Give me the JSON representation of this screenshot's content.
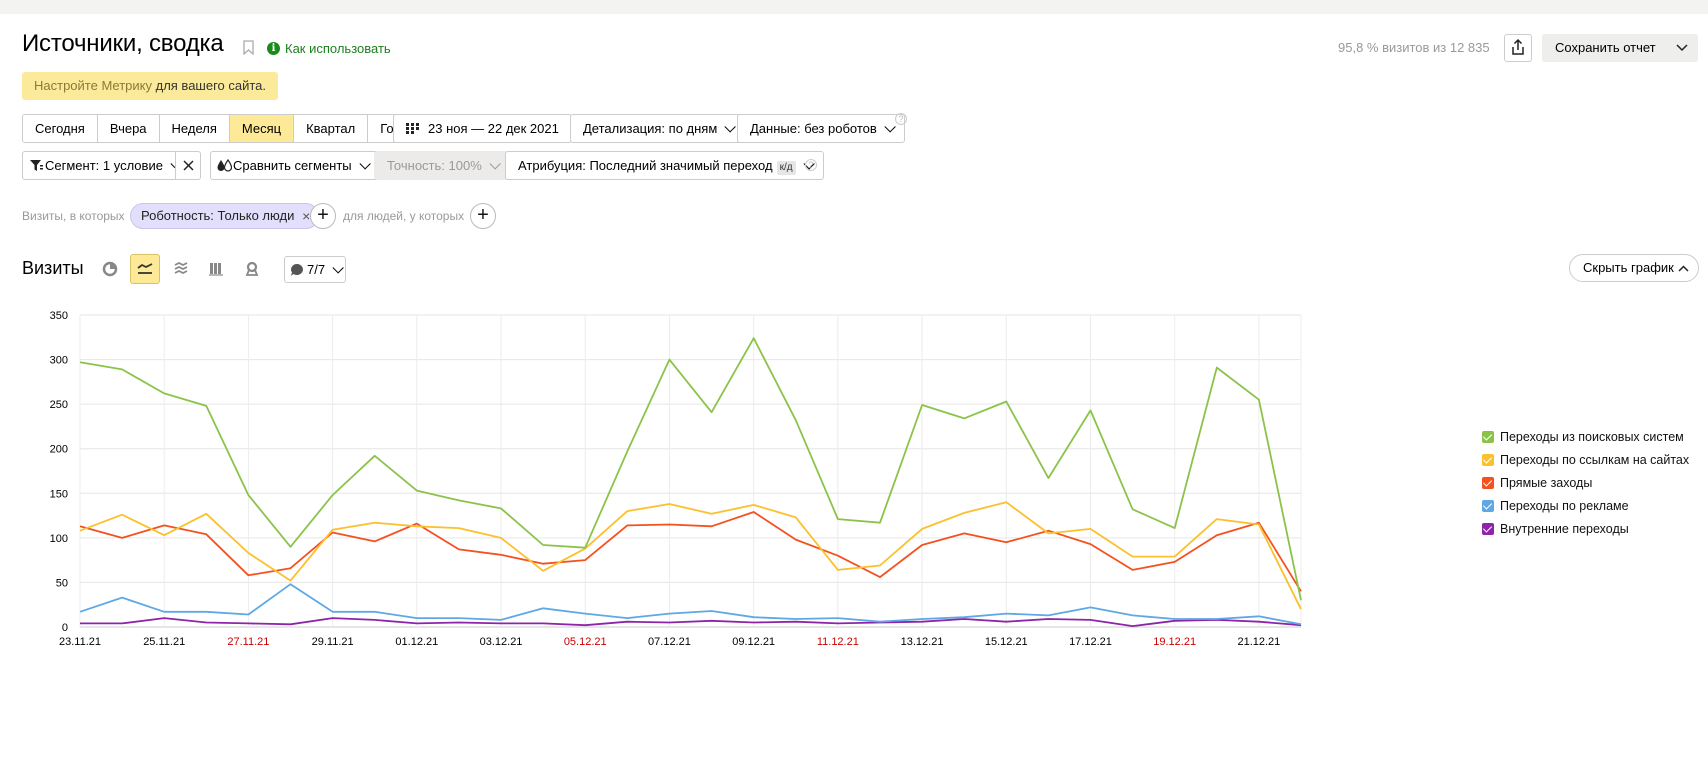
{
  "header": {
    "title": "Источники, сводка",
    "how_to": "Как использовать",
    "visits_share": "95,8 % визитов из 12 835",
    "save_label": "Сохранить отчет"
  },
  "notice": {
    "link_text": "Настройте Метрику",
    "rest_text": " для вашего сайта."
  },
  "periods": [
    "Сегодня",
    "Вчера",
    "Неделя",
    "Месяц",
    "Квартал",
    "Год"
  ],
  "active_period": "Месяц",
  "date_range": "23 ноя — 22 дек 2021",
  "detail": "Детализация: по дням",
  "data_filter": "Данные: без роботов",
  "segment": "Сегмент: 1 условие",
  "compare": "Сравнить сегменты",
  "accuracy": "Точность: 100%",
  "attribution": "Атрибуция: Последний значимый переход",
  "attribution_tag": "к/д",
  "filters": {
    "visits_label": "Визиты, в которых",
    "chip": "Роботность: Только люди",
    "people_label": "для людей, у которых"
  },
  "chart_section": {
    "title": "Визиты",
    "comments": "7/7",
    "hide_label": "Скрыть график"
  },
  "chart_data": {
    "type": "line",
    "ylim": [
      0,
      350
    ],
    "yticks": [
      0,
      50,
      100,
      150,
      200,
      250,
      300,
      350
    ],
    "grid": true,
    "legend_position": "right",
    "x_tick_labels": [
      {
        "label": "23.11.21",
        "index": 0,
        "weekend": false
      },
      {
        "label": "25.11.21",
        "index": 2,
        "weekend": false
      },
      {
        "label": "27.11.21",
        "index": 4,
        "weekend": true
      },
      {
        "label": "29.11.21",
        "index": 6,
        "weekend": false
      },
      {
        "label": "01.12.21",
        "index": 8,
        "weekend": false
      },
      {
        "label": "03.12.21",
        "index": 10,
        "weekend": false
      },
      {
        "label": "05.12.21",
        "index": 12,
        "weekend": true
      },
      {
        "label": "07.12.21",
        "index": 14,
        "weekend": false
      },
      {
        "label": "09.12.21",
        "index": 16,
        "weekend": false
      },
      {
        "label": "11.12.21",
        "index": 18,
        "weekend": true
      },
      {
        "label": "13.12.21",
        "index": 20,
        "weekend": false
      },
      {
        "label": "15.12.21",
        "index": 22,
        "weekend": false
      },
      {
        "label": "17.12.21",
        "index": 24,
        "weekend": false
      },
      {
        "label": "19.12.21",
        "index": 26,
        "weekend": true
      },
      {
        "label": "21.12.21",
        "index": 28,
        "weekend": false
      }
    ],
    "series": [
      {
        "name": "Переходы из поисковых систем",
        "color": "#8bc34a",
        "values": [
          297,
          289,
          262,
          248,
          148,
          90,
          148,
          192,
          153,
          142,
          133,
          92,
          89,
          197,
          300,
          241,
          324,
          232,
          121,
          117,
          249,
          234,
          253,
          167,
          243,
          132,
          111,
          291,
          255,
          30
        ]
      },
      {
        "name": "Переходы по ссылкам на сайтах",
        "color": "#fbc02d",
        "values": [
          108,
          126,
          103,
          127,
          83,
          52,
          109,
          117,
          113,
          111,
          100,
          63,
          88,
          130,
          138,
          127,
          137,
          123,
          64,
          69,
          110,
          128,
          140,
          105,
          110,
          79,
          79,
          121,
          115,
          20
        ]
      },
      {
        "name": "Прямые заходы",
        "color": "#f4511e",
        "values": [
          113,
          100,
          114,
          104,
          58,
          66,
          106,
          96,
          116,
          87,
          81,
          71,
          75,
          114,
          115,
          113,
          129,
          98,
          80,
          56,
          92,
          105,
          95,
          108,
          93,
          64,
          73,
          103,
          117,
          40
        ]
      },
      {
        "name": "Переходы по рекламе",
        "color": "#5ea8e5",
        "values": [
          17,
          33,
          17,
          17,
          14,
          48,
          17,
          17,
          10,
          10,
          8,
          21,
          15,
          10,
          15,
          18,
          11,
          9,
          10,
          6,
          9,
          11,
          15,
          13,
          22,
          13,
          9,
          9,
          12,
          3
        ]
      },
      {
        "name": "Внутренние переходы",
        "color": "#8e24aa",
        "values": [
          4,
          4,
          10,
          5,
          4,
          3,
          10,
          8,
          4,
          5,
          4,
          4,
          2,
          6,
          5,
          7,
          5,
          6,
          4,
          5,
          6,
          9,
          6,
          9,
          8,
          1,
          7,
          8,
          6,
          2
        ]
      }
    ]
  },
  "icons": {
    "bookmark": "bookmark-icon",
    "info": "info-icon",
    "share": "share-icon",
    "calendar": "calendar-icon",
    "funnel": "filter-icon",
    "drops": "compare-drops-icon",
    "pie": "pie-chart-icon",
    "line": "line-chart-icon",
    "area": "area-chart-icon",
    "bar": "bar-chart-icon",
    "map": "map-pin-icon",
    "comment": "comment-icon"
  }
}
